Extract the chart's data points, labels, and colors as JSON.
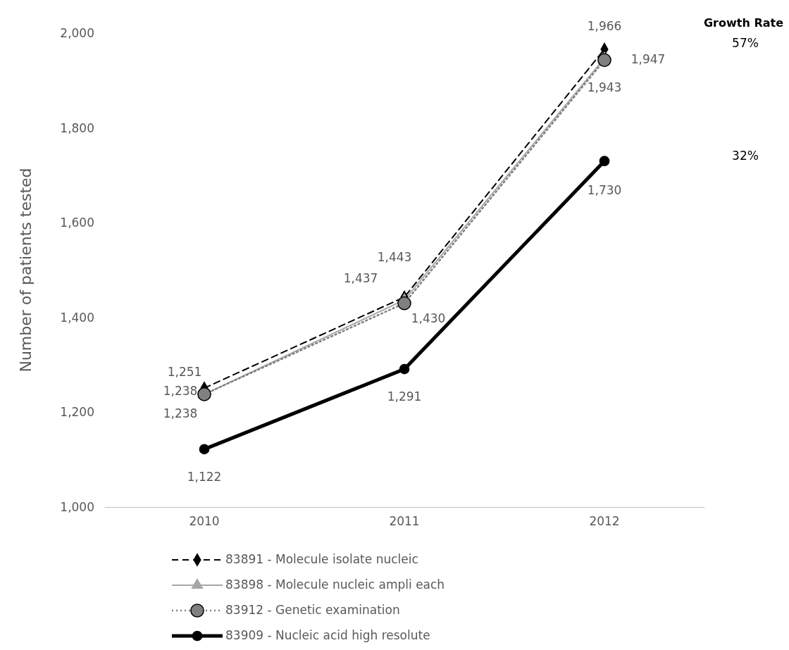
{
  "chart_data": {
    "type": "line",
    "ylabel": "Number of patients tested",
    "categories": [
      "2010",
      "2011",
      "2012"
    ],
    "series": [
      {
        "name": "83891 - Molecule isolate nucleic",
        "color": "#000000",
        "values": [
          1251,
          1443,
          1966
        ],
        "value_labels": [
          "1,251",
          "1,443",
          "1,966"
        ],
        "marker": "diamond",
        "line_style": "dashed"
      },
      {
        "name": "83898 - Molecule nucleic ampli each",
        "color": "#a6a6a6",
        "values": [
          1238,
          1437,
          1947
        ],
        "value_labels": [
          "1,238",
          "1,437",
          "1,947"
        ],
        "marker": "triangle",
        "line_style": "solid"
      },
      {
        "name": "83912 - Genetic examination",
        "color": "#808080",
        "values": [
          1238,
          1430,
          1943
        ],
        "value_labels": [
          "1,238",
          "1,430",
          "1,943"
        ],
        "marker": "circle",
        "line_style": "dotted"
      },
      {
        "name": "83909 - Nucleic acid high resolute",
        "color": "#000000",
        "values": [
          1122,
          1291,
          1730
        ],
        "value_labels": [
          "1,122",
          "1,291",
          "1,730"
        ],
        "marker": "circle",
        "line_style": "solid"
      }
    ],
    "ylim": [
      1000,
      2000
    ],
    "yticks": [
      {
        "value": 1000,
        "label": "1,000"
      },
      {
        "value": 1200,
        "label": "1,200"
      },
      {
        "value": 1400,
        "label": "1,400"
      },
      {
        "value": 1600,
        "label": "1,600"
      },
      {
        "value": 1800,
        "label": "1,800"
      },
      {
        "value": 2000,
        "label": "2,000"
      }
    ],
    "grid": false,
    "legend": "bottom",
    "annotations": [
      "Growth Rate",
      "57%",
      "32%"
    ]
  }
}
